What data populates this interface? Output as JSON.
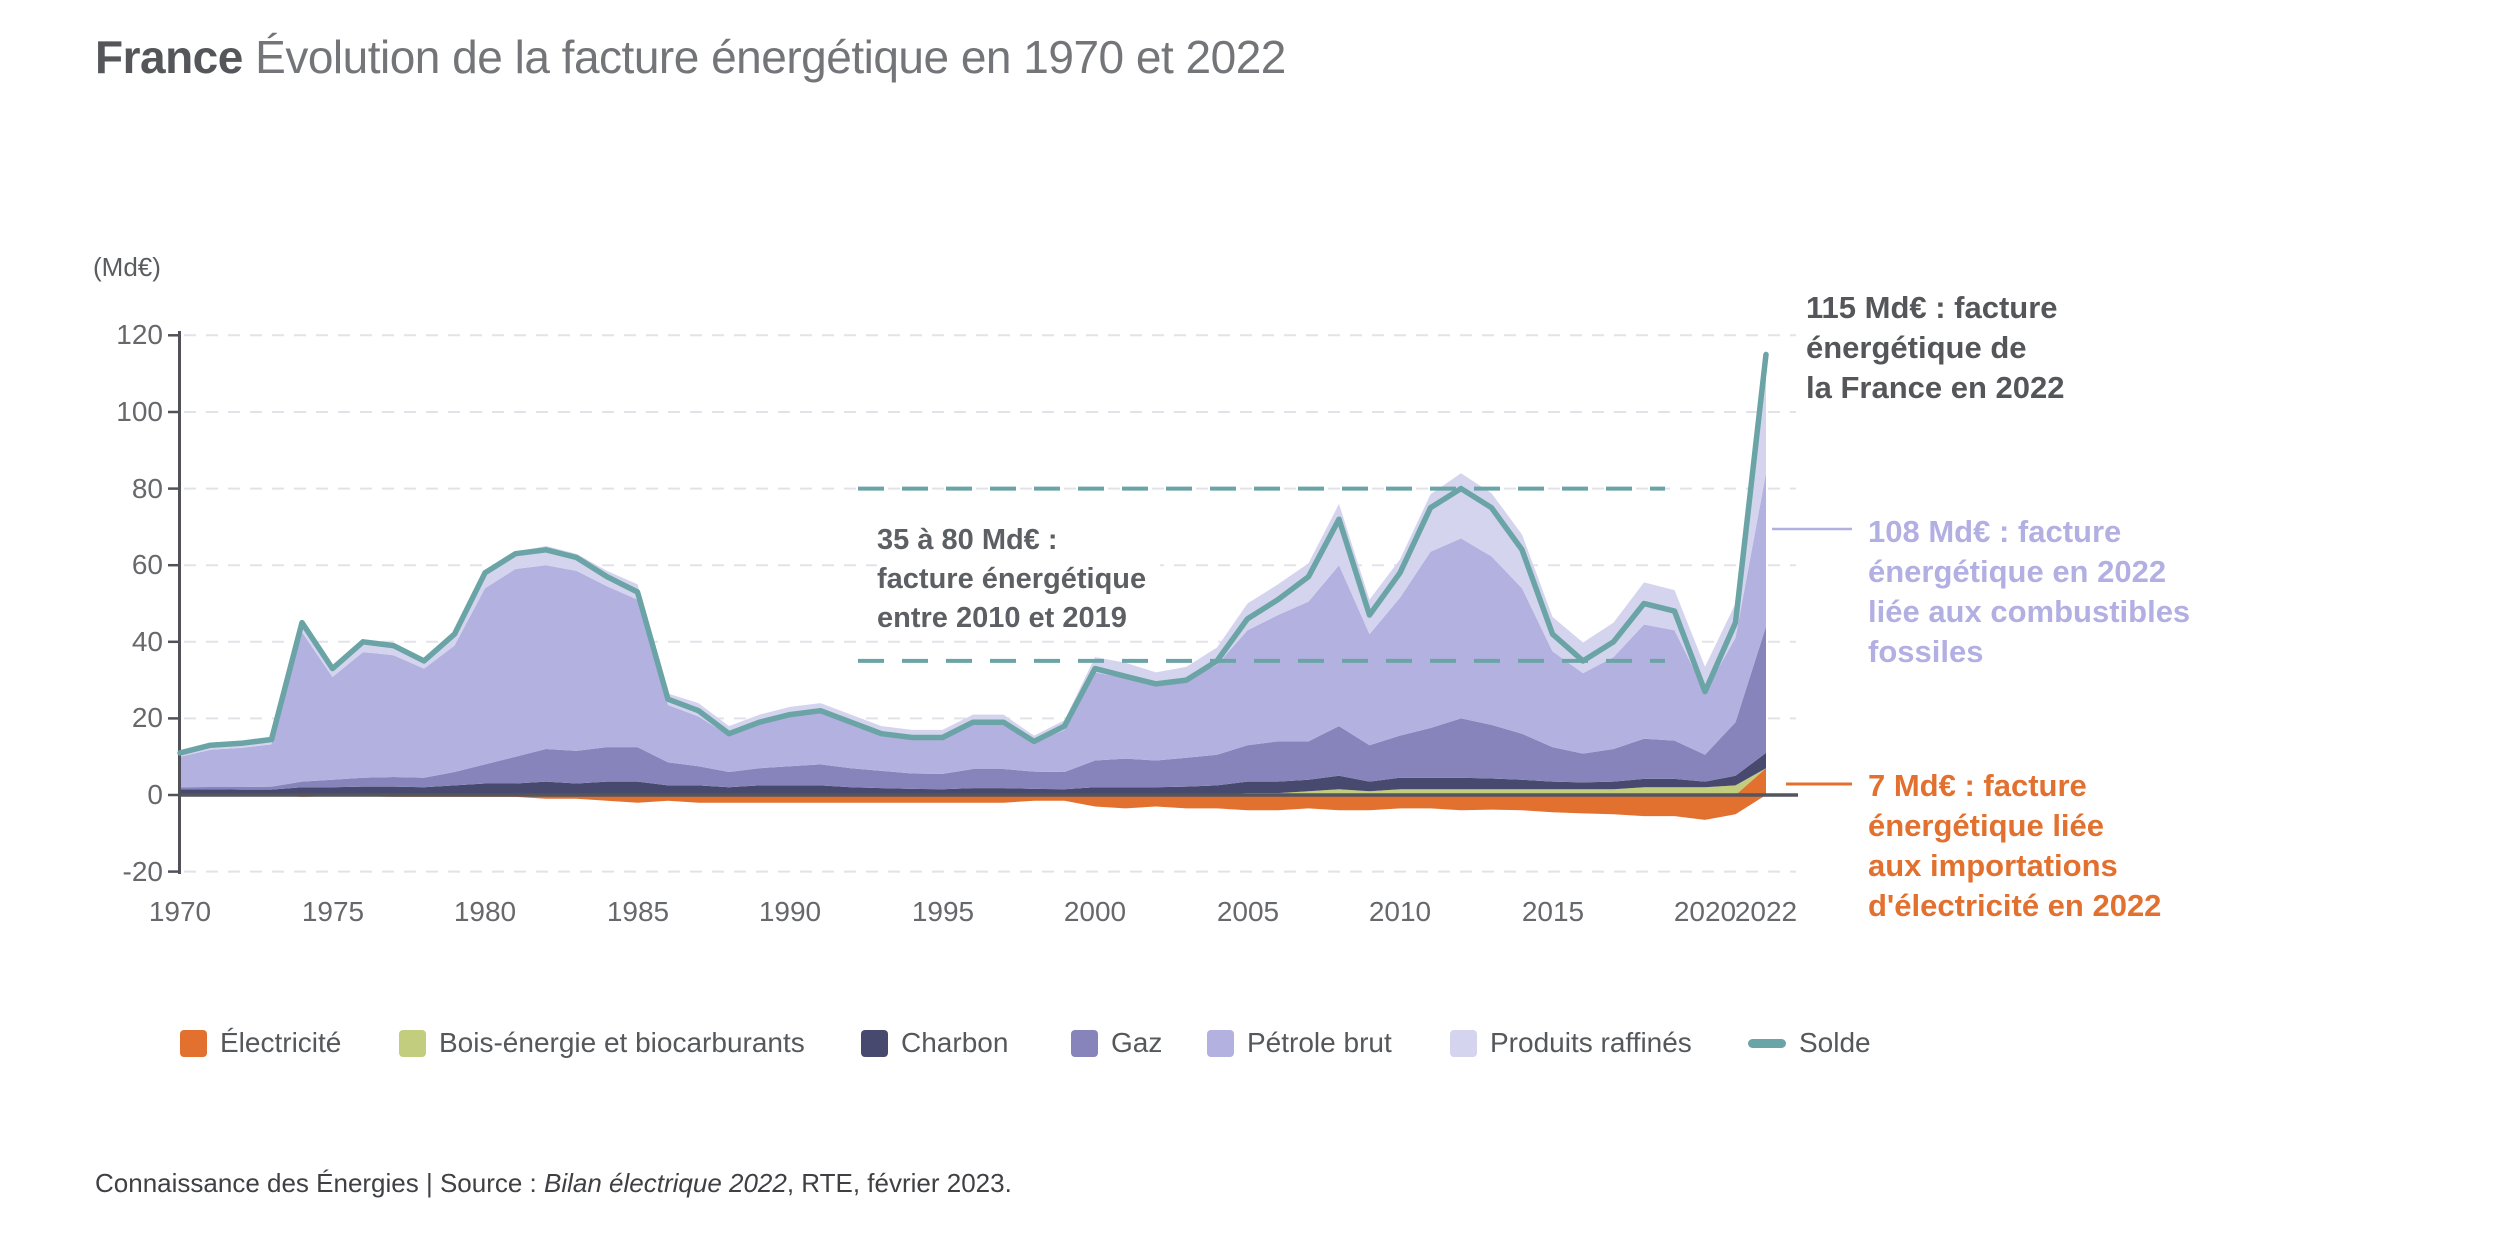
{
  "title": {
    "bold": "France",
    "rest": " Évolution de la facture énergétique en 1970 et 2022"
  },
  "y_axis": {
    "unit_label": "(Md€)",
    "ticks": [
      120,
      100,
      80,
      60,
      40,
      20,
      0,
      -20
    ]
  },
  "x_axis": {
    "ticks": [
      1970,
      1975,
      1980,
      1985,
      1990,
      1995,
      2000,
      2005,
      2010,
      2015,
      2020,
      2022
    ]
  },
  "annotations": {
    "range": {
      "lines": [
        "35 à 80 Md€ :",
        "facture énergétique",
        "entre 2010 et 2019"
      ]
    },
    "total": {
      "lines": [
        "115 Md€ : facture",
        "énergétique de",
        "la France en 2022"
      ]
    },
    "fossil": {
      "lines": [
        "108 Md€ : facture",
        "énergétique en 2022",
        "liée aux combustibles",
        "fossiles"
      ]
    },
    "electricity": {
      "lines": [
        "7 Md€ : facture",
        "énergétique liée",
        "aux importations",
        "d'électricité en 2022"
      ]
    }
  },
  "legend": [
    {
      "label": "Électricité",
      "color": "#e2702f",
      "type": "square"
    },
    {
      "label": "Bois-énergie et biocarburants",
      "color": "#c2ce7d",
      "type": "square"
    },
    {
      "label": "Charbon",
      "color": "#474a6e",
      "type": "square"
    },
    {
      "label": "Gaz",
      "color": "#8784bb",
      "type": "square"
    },
    {
      "label": "Pétrole brut",
      "color": "#b3b1e0",
      "type": "square"
    },
    {
      "label": "Produits raffinés",
      "color": "#d5d4ee",
      "type": "square"
    },
    {
      "label": "Solde",
      "color": "#6ba4a6",
      "type": "line"
    }
  ],
  "footer": {
    "prefix": "Connaissance des Énergies | Source : ",
    "italic": "Bilan électrique 2022",
    "suffix": ", RTE, février 2023."
  },
  "colors": {
    "grid": "#e2e2e9",
    "axis": "#515259",
    "zero_line": "#54555d",
    "solde": "#6ba4a6",
    "electricite": "#e2702f",
    "fossil_text": "#b2afe3",
    "title_bold": "#545659",
    "title_light": "#737578"
  },
  "chart_data": {
    "type": "area",
    "stacked": true,
    "title": "France Évolution de la facture énergétique en 1970 et 2022",
    "ylabel": "(Md€)",
    "ylim": [
      -20,
      120
    ],
    "xlim": [
      1970,
      2022
    ],
    "grid": "dashed horizontal",
    "legend_position": "bottom",
    "x": [
      1970,
      1971,
      1972,
      1973,
      1974,
      1975,
      1976,
      1977,
      1978,
      1979,
      1980,
      1981,
      1982,
      1983,
      1984,
      1985,
      1986,
      1987,
      1988,
      1989,
      1990,
      1991,
      1992,
      1993,
      1994,
      1995,
      1996,
      1997,
      1998,
      1999,
      2000,
      2001,
      2002,
      2003,
      2004,
      2005,
      2006,
      2007,
      2008,
      2009,
      2010,
      2011,
      2012,
      2013,
      2014,
      2015,
      2016,
      2017,
      2018,
      2019,
      2020,
      2021,
      2022
    ],
    "series": [
      {
        "id": "electricite",
        "name": "Électricité",
        "color": "#e2702f",
        "values": [
          0,
          0,
          0,
          0,
          -0.5,
          -0.3,
          -0.3,
          -0.5,
          -0.5,
          -0.5,
          -0.5,
          -0.5,
          -1,
          -1,
          -1.5,
          -2,
          -1.5,
          -2,
          -2,
          -2,
          -2,
          -2,
          -2,
          -2,
          -2,
          -2,
          -2,
          -2,
          -1.5,
          -1.5,
          -3,
          -3.5,
          -3,
          -3.5,
          -3.5,
          -4,
          -4,
          -3.5,
          -4,
          -4,
          -3.5,
          -3.5,
          -4,
          -3.8,
          -4,
          -4.5,
          -4.8,
          -5,
          -5.5,
          -5.5,
          -6.5,
          -5,
          7
        ]
      },
      {
        "id": "bois",
        "name": "Bois-énergie et biocarburants",
        "color": "#c2ce7d",
        "values": [
          0,
          0,
          0,
          0,
          0,
          0,
          0,
          0,
          0,
          0,
          0,
          0,
          0,
          0,
          0,
          0,
          0,
          0,
          0,
          0,
          0,
          0,
          0,
          0,
          0,
          0,
          0,
          0,
          0,
          0,
          0,
          0,
          0,
          0,
          0,
          0.5,
          0.5,
          1,
          1.5,
          1,
          1.5,
          1.5,
          1.5,
          1.5,
          1.5,
          1.5,
          1.5,
          1.5,
          2,
          2,
          2,
          2.5,
          0
        ]
      },
      {
        "id": "charbon",
        "name": "Charbon",
        "color": "#474a6e",
        "values": [
          1.5,
          1.5,
          1.4,
          1.4,
          2,
          2,
          2.2,
          2.2,
          2,
          2.5,
          3,
          3,
          3.5,
          3,
          3.5,
          3.5,
          2.5,
          2.5,
          2,
          2.5,
          2.5,
          2.5,
          2,
          1.8,
          1.6,
          1.5,
          1.8,
          1.8,
          1.6,
          1.5,
          2,
          2,
          2,
          2.2,
          2.5,
          3,
          3,
          3,
          3.5,
          2.5,
          3,
          3,
          3,
          2.8,
          2.5,
          2,
          1.8,
          2,
          2.2,
          2.2,
          1.5,
          2.5,
          4
        ]
      },
      {
        "id": "gaz",
        "name": "Gaz",
        "color": "#8784bb",
        "values": [
          0.5,
          0.6,
          0.7,
          0.8,
          1.5,
          2,
          2.3,
          2.5,
          2.5,
          3.5,
          5,
          7,
          8.5,
          8.5,
          9,
          9,
          6,
          5,
          4,
          4.5,
          5,
          5.5,
          5,
          4.5,
          4,
          4,
          5,
          5,
          4.5,
          4.5,
          7,
          7.5,
          7,
          7.5,
          8,
          9.5,
          10.5,
          10,
          13,
          9.5,
          11,
          13,
          15.5,
          14,
          12,
          9,
          7.5,
          8.5,
          10.5,
          10,
          7,
          14,
          33
        ]
      },
      {
        "id": "petrole_brut",
        "name": "Pétrole brut",
        "color": "#b3b1e0",
        "values": [
          8,
          9.7,
          10.2,
          11,
          39,
          26.8,
          32.8,
          31.8,
          28.5,
          33,
          46,
          49,
          48,
          47,
          42,
          38.5,
          15,
          13,
          9.5,
          11.5,
          13,
          13.5,
          12,
          10,
          9.5,
          9.5,
          11.5,
          11.5,
          7.5,
          11,
          23,
          21,
          19.5,
          20,
          23.5,
          30,
          33,
          36.5,
          42,
          29,
          36,
          46,
          47,
          44,
          38,
          25,
          21,
          24,
          29.8,
          28.8,
          16.5,
          22,
          40
        ]
      },
      {
        "id": "produits_raffines",
        "name": "Produits raffinés",
        "color": "#d5d4ee",
        "values": [
          1,
          1.2,
          1.2,
          1.3,
          3,
          2.5,
          3,
          3,
          2.5,
          3.5,
          4.5,
          4.5,
          5,
          4.5,
          4,
          4,
          3,
          3.5,
          2.5,
          2.5,
          2.5,
          2.5,
          2,
          1.7,
          1.9,
          2,
          2.7,
          2.7,
          1.9,
          2.5,
          4,
          4,
          3.5,
          3.8,
          4.5,
          7,
          8,
          10,
          16,
          9,
          10,
          15,
          17,
          16.5,
          14,
          9,
          8,
          9,
          11,
          10.5,
          6.5,
          9,
          31
        ]
      }
    ],
    "line_series": {
      "name": "Solde",
      "color": "#6ba4a6",
      "values": [
        11,
        13,
        13.5,
        14.5,
        45,
        33,
        40,
        39,
        35,
        42,
        58,
        63,
        64,
        62,
        57,
        53,
        25,
        22,
        16,
        19,
        21,
        22,
        19,
        16,
        15,
        15,
        19,
        19,
        14,
        18,
        33,
        31,
        29,
        30,
        35,
        46,
        51,
        57,
        72,
        47,
        58,
        75,
        80,
        75,
        64,
        42,
        35,
        40,
        50,
        48,
        27,
        45,
        115
      ]
    },
    "range_band": {
      "high": 80,
      "low": 35,
      "style": "teal dashed lines"
    },
    "callouts": {
      "total_2022": 115,
      "fossil_2022": 108,
      "electricity_2022": 7
    }
  }
}
